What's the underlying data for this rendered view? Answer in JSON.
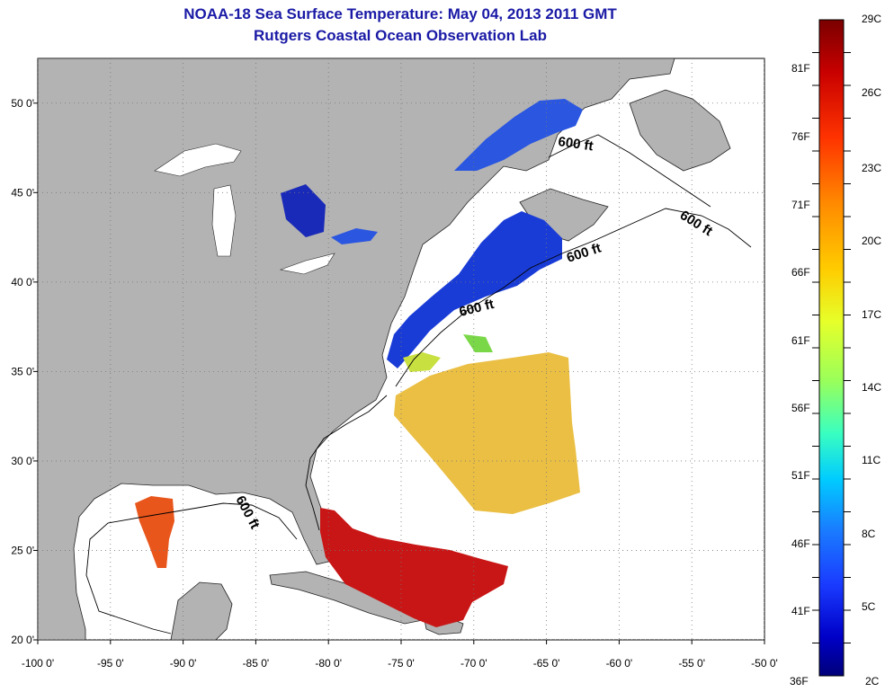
{
  "header": {
    "title": "NOAA-18 Sea Surface Temperature:  May 04, 2013 2011 GMT",
    "subtitle": "Rutgers Coastal Ocean Observation Lab"
  },
  "map": {
    "lon_range": [
      -100,
      -50
    ],
    "lat_range": [
      20,
      52.5
    ],
    "x_ticks": [
      "-100 0'",
      "-95 0'",
      "-90 0'",
      "-85 0'",
      "-80 0'",
      "-75 0'",
      "-70 0'",
      "-65 0'",
      "-60 0'",
      "-55 0'",
      "-50 0'"
    ],
    "y_ticks": [
      "20 0'",
      "25 0'",
      "30 0'",
      "35 0'",
      "40 0'",
      "45 0'",
      "50 0'"
    ],
    "contour_labels": [
      "600 ft",
      "600 ft",
      "600 ft",
      "600 ft",
      "600 ft"
    ],
    "grid": "dotted",
    "colors": {
      "land": "#b3b3b3",
      "ocean_no_data": "#ffffff",
      "cold": "#1a3cd6",
      "warm": "#e8a830",
      "hot": "#c81616"
    }
  },
  "colorbar": {
    "top_left_label": "29C",
    "bottom_left_label": "36F",
    "bottom_right_label": "2C",
    "fahrenheit": [
      "81F",
      "76F",
      "71F",
      "66F",
      "61F",
      "56F",
      "51F",
      "46F",
      "41F"
    ],
    "celsius": [
      "26C",
      "23C",
      "20C",
      "17C",
      "14C",
      "11C",
      "8C",
      "5C"
    ],
    "gradient": [
      "#7a0000",
      "#c80000",
      "#ff3300",
      "#ff8a00",
      "#ffcc00",
      "#e6ff2a",
      "#9aff5a",
      "#3affc0",
      "#00ccff",
      "#1a7aff",
      "#1a3cff",
      "#0000c8",
      "#00007a"
    ]
  }
}
